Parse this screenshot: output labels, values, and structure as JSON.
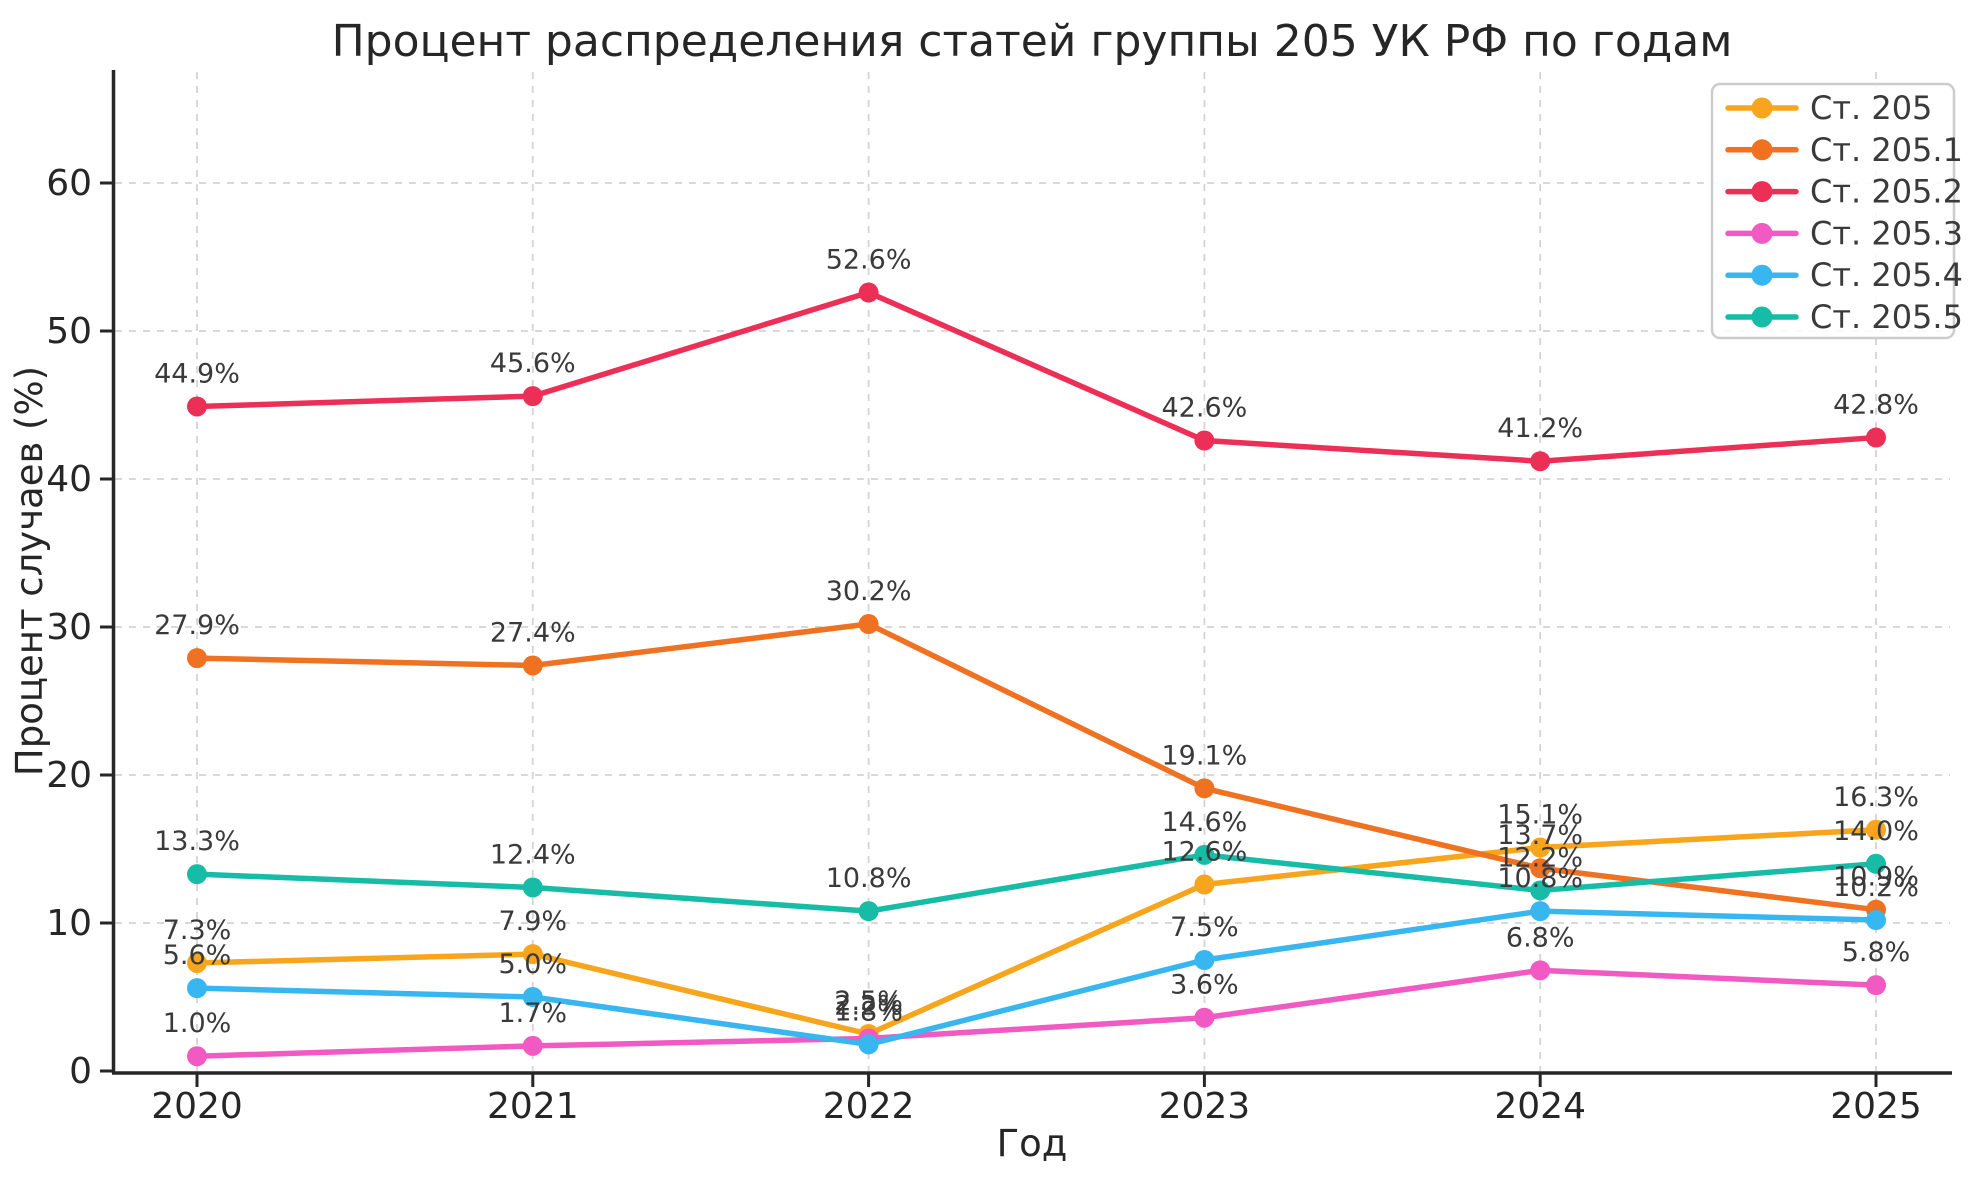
{
  "chart_data": {
    "type": "line",
    "title": "Процент распределения статей группы 205 УК РФ по годам",
    "xlabel": "Год",
    "ylabel": "Процент случаев (%)",
    "x": [
      2020,
      2021,
      2022,
      2023,
      2024,
      2025
    ],
    "yticks": [
      0,
      10,
      20,
      30,
      40,
      50,
      60
    ],
    "ylim": [
      0,
      67.5
    ],
    "grid": true,
    "grid_style": "dashed",
    "legend_position": "upper right",
    "point_label_format": "{value}%",
    "series": [
      {
        "name": "Ст. 205",
        "color": "#F6A51C",
        "values": [
          7.3,
          7.9,
          2.5,
          12.6,
          15.1,
          16.3
        ]
      },
      {
        "name": "Ст. 205.1",
        "color": "#EE7221",
        "values": [
          27.9,
          27.4,
          30.2,
          19.1,
          13.7,
          10.9
        ]
      },
      {
        "name": "Ст. 205.2",
        "color": "#EC2F56",
        "values": [
          44.9,
          45.6,
          52.6,
          42.6,
          41.2,
          42.8
        ]
      },
      {
        "name": "Ст. 205.3",
        "color": "#F159C3",
        "values": [
          1.0,
          1.7,
          2.2,
          3.6,
          6.8,
          5.8
        ]
      },
      {
        "name": "Ст. 205.4",
        "color": "#38B6F0",
        "values": [
          5.6,
          5.0,
          1.8,
          7.5,
          10.8,
          10.2
        ]
      },
      {
        "name": "Ст. 205.5",
        "color": "#17BCA6",
        "values": [
          13.3,
          12.4,
          10.8,
          14.6,
          12.2,
          14.0
        ]
      }
    ],
    "colors": {
      "grid": "#d4d4d4",
      "spine": "#262626",
      "label_text": "#3a3a3a",
      "legend_border": "#cccccc"
    }
  }
}
